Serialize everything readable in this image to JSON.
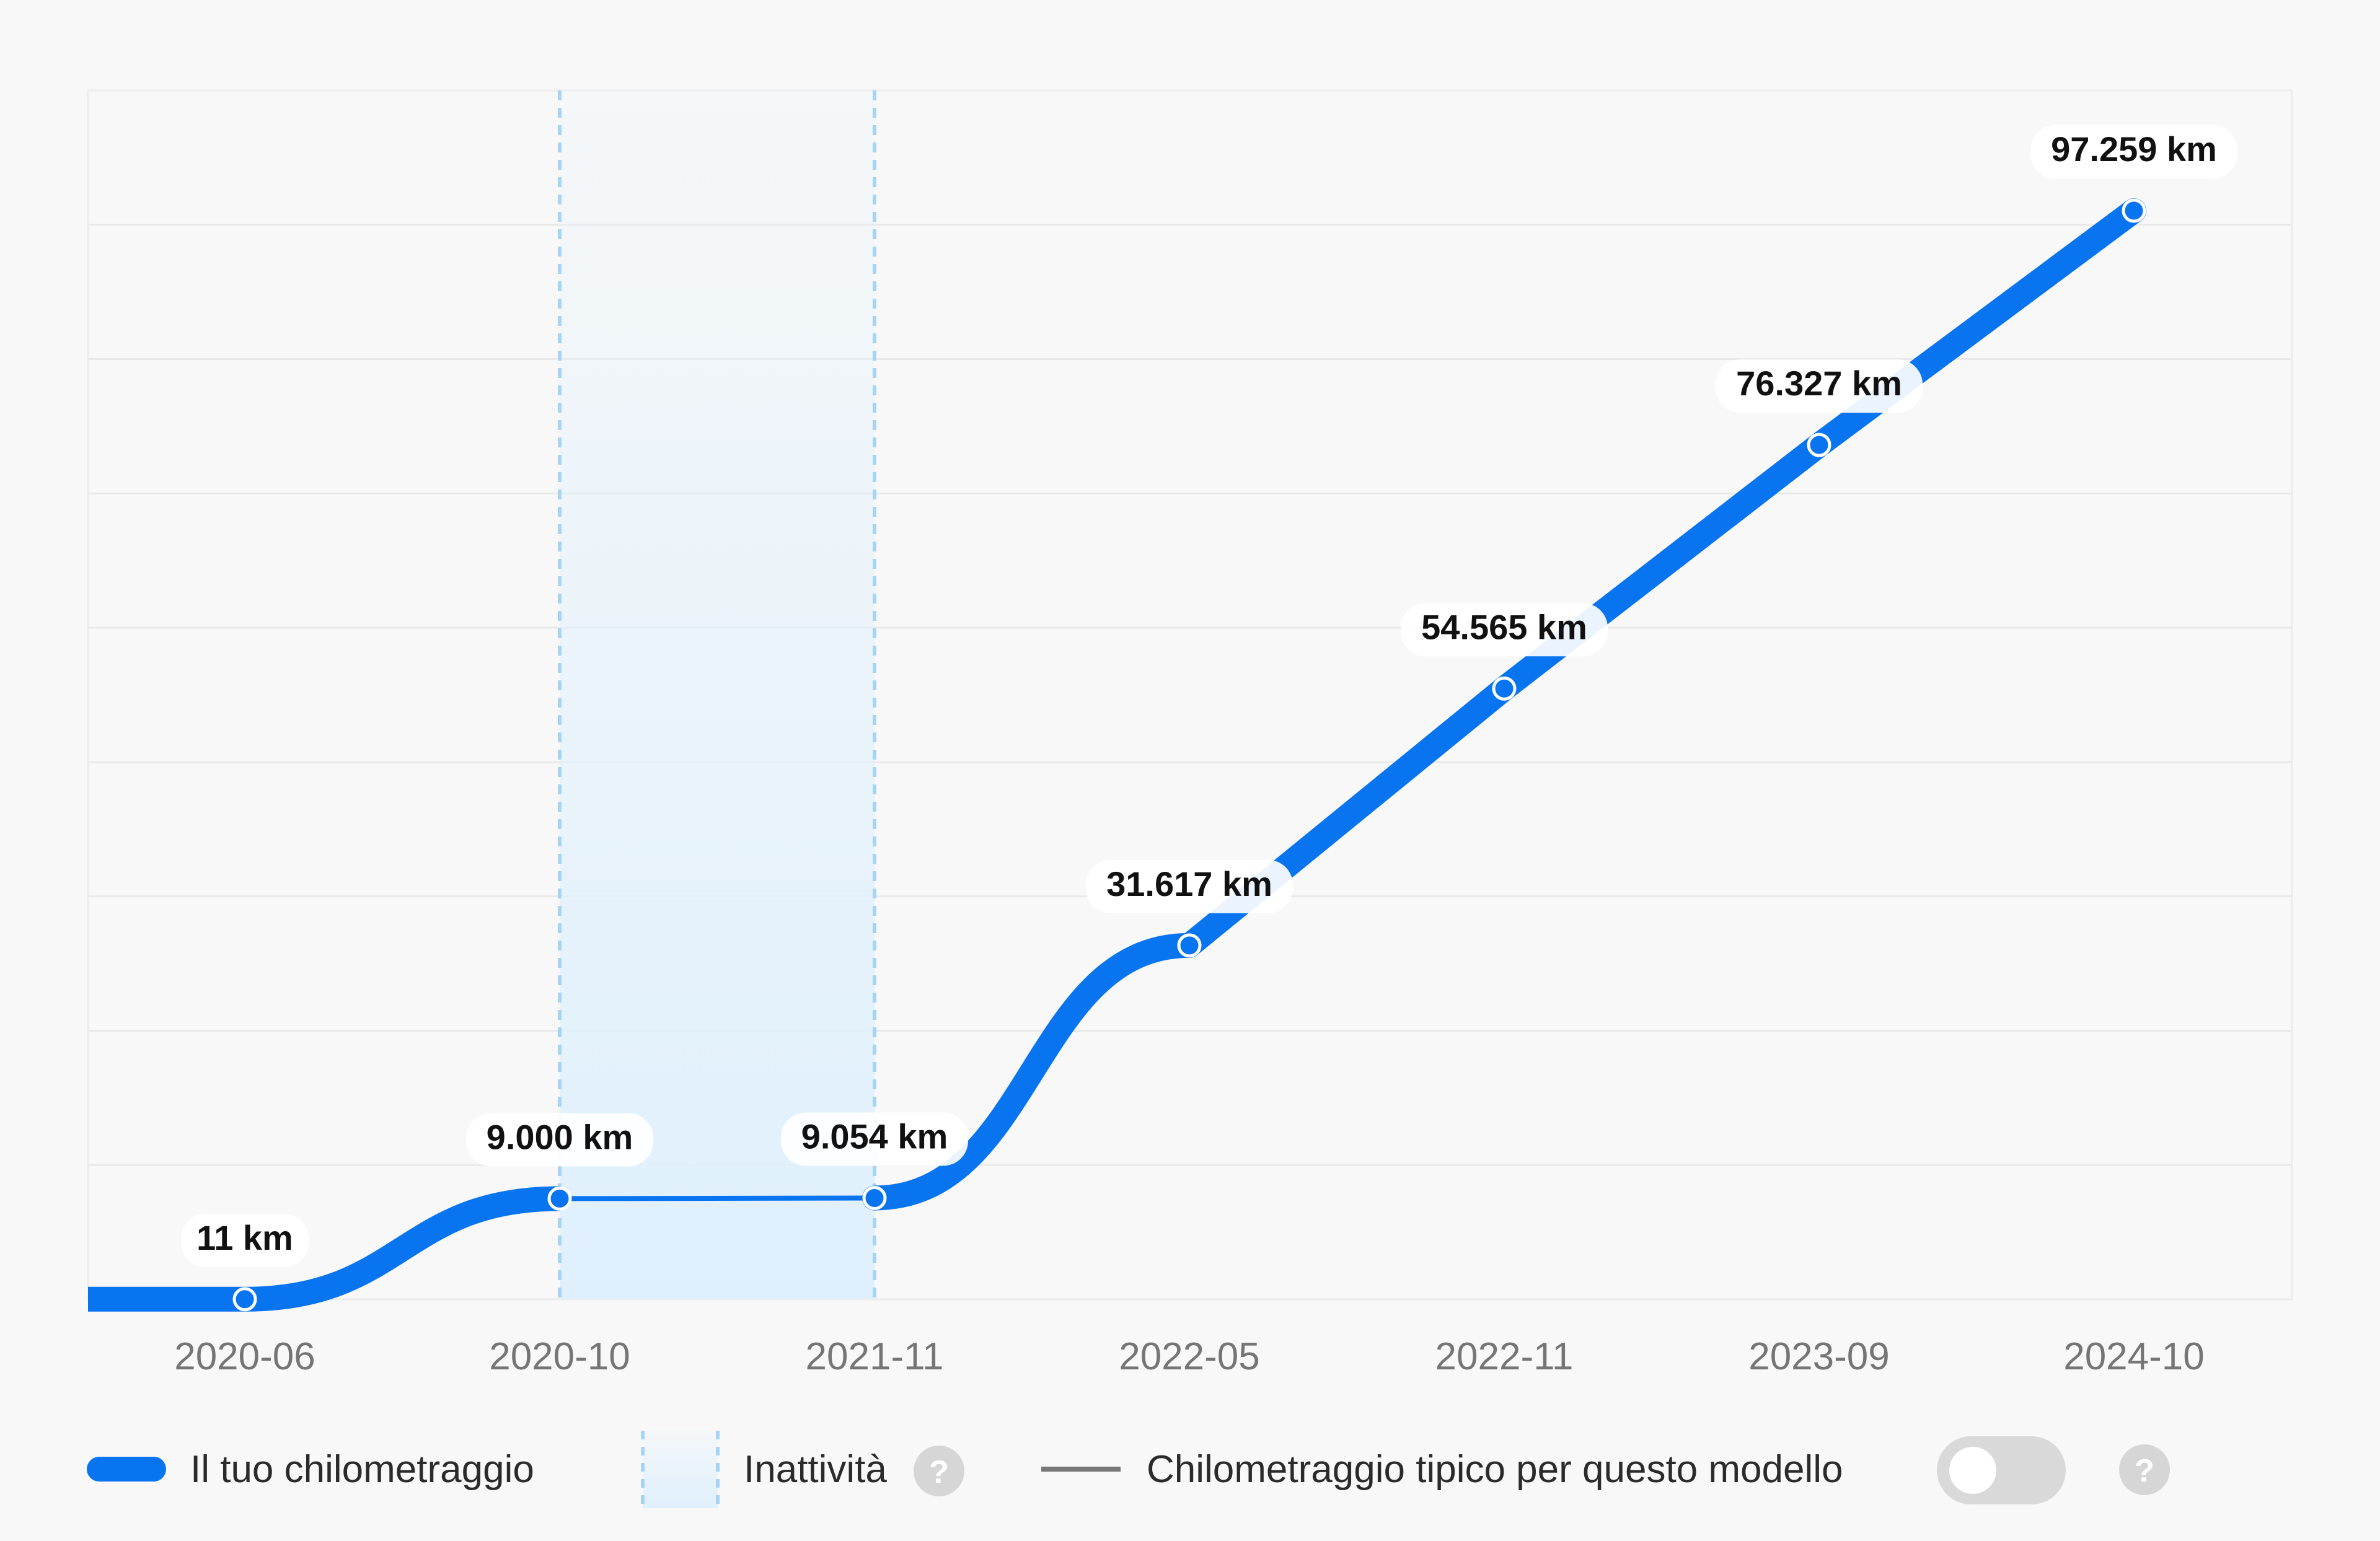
{
  "chart_data": {
    "type": "line",
    "title": "",
    "xlabel": "",
    "ylabel": "",
    "categories": [
      "2020-06",
      "2020-10",
      "2021-11",
      "2022-05",
      "2022-11",
      "2023-09",
      "2024-10"
    ],
    "series": [
      {
        "name": "Il tuo chilometraggio",
        "values": [
          11,
          9000,
          9054,
          31617,
          54565,
          76327,
          97259
        ],
        "labels": [
          "11 km",
          "9.000 km",
          "9.054 km",
          "31.617 km",
          "54.565 km",
          "76.327 km",
          "97.259 km"
        ]
      }
    ],
    "ylim": [
      0,
      108000
    ],
    "grid": true,
    "inactivity": {
      "from": "2020-10",
      "to": "2021-11"
    },
    "colors": {
      "mileage": "#0874f0",
      "inactivity_fill": "#dff0fc",
      "inactivity_border": "#a6d4f5",
      "typical": "#777777"
    }
  },
  "legend": {
    "mileage_label": "Il tuo chilometraggio",
    "inactivity_label": "Inattività",
    "typical_label": "Chilometraggio tipico per questo modello",
    "typical_toggle_on": false,
    "help_glyph": "?"
  }
}
